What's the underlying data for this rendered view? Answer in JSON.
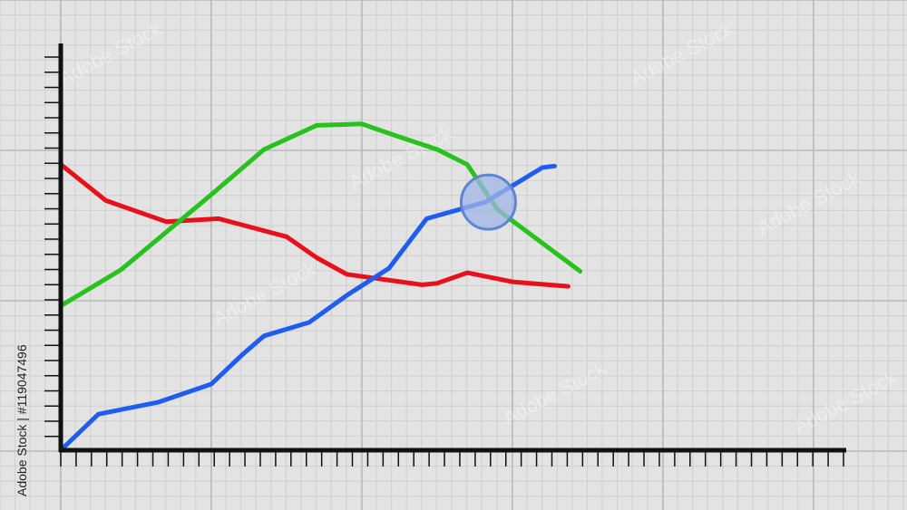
{
  "watermark": {
    "brand": "Adobe Stock",
    "side_label": "Adobe Stock | #119047496"
  },
  "colors": {
    "background": "#e3e3e3",
    "grid_minor": "#cfcfcf",
    "grid_major": "#b9b9b9",
    "axis": "#111111",
    "highlight_fill": "#9fb6e6",
    "highlight_stroke": "#5f84d6"
  },
  "chart_data": {
    "type": "line",
    "title": "",
    "xlabel": "",
    "ylabel": "",
    "grid": true,
    "xlim": [
      0,
      50
    ],
    "ylim": [
      0,
      26
    ],
    "x_ticks": 52,
    "y_ticks": 27,
    "series": [
      {
        "color": "#e8101b",
        "points": [
          [
            0,
            19
          ],
          [
            3,
            16.6
          ],
          [
            7,
            15.2
          ],
          [
            10.5,
            15.4
          ],
          [
            15,
            14.2
          ],
          [
            17,
            12.8
          ],
          [
            19,
            11.7
          ],
          [
            24,
            11
          ],
          [
            25,
            11.1
          ],
          [
            27,
            11.8
          ],
          [
            30,
            11.2
          ],
          [
            33.7,
            10.9
          ]
        ]
      },
      {
        "color": "#27c21d",
        "points": [
          [
            0,
            9.6
          ],
          [
            4,
            12
          ],
          [
            10,
            17
          ],
          [
            13.5,
            20
          ],
          [
            17,
            21.6
          ],
          [
            20,
            21.7
          ],
          [
            22,
            21
          ],
          [
            25,
            20
          ],
          [
            27,
            19
          ],
          [
            29,
            16
          ],
          [
            34.5,
            11.9
          ]
        ]
      },
      {
        "color": "#1f5cf2",
        "points": [
          [
            0,
            0
          ],
          [
            2.5,
            2.4
          ],
          [
            6.5,
            3.2
          ],
          [
            10,
            4.4
          ],
          [
            12,
            6.3
          ],
          [
            13.5,
            7.6
          ],
          [
            16.5,
            8.5
          ],
          [
            19,
            10.3
          ],
          [
            21.8,
            12.1
          ],
          [
            24.3,
            15.4
          ],
          [
            28.2,
            16.5
          ],
          [
            32,
            18.8
          ],
          [
            32.8,
            18.9
          ]
        ]
      }
    ],
    "highlight_point": [
      28.4,
      16.5
    ]
  }
}
